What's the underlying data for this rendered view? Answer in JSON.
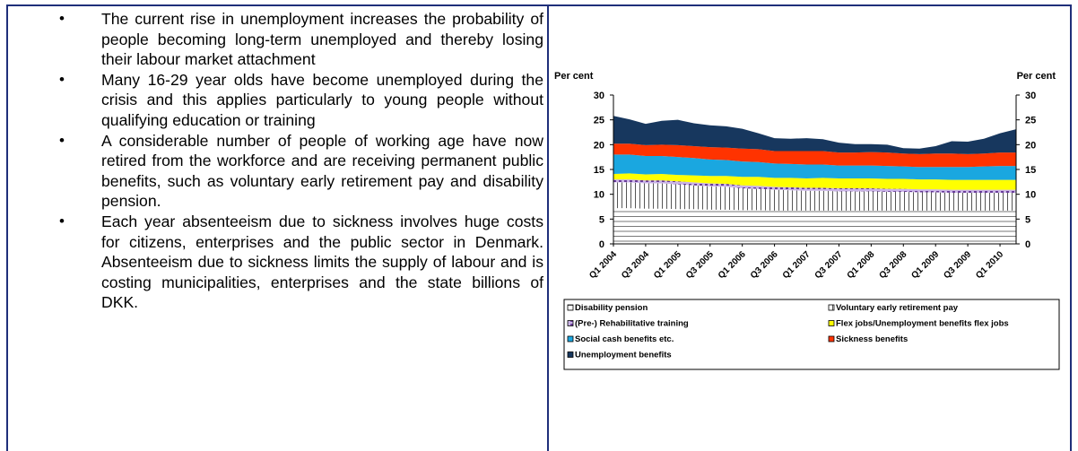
{
  "bullets": [
    "The current rise in unemployment increases the probability of people becoming long-term unemployed and thereby losing their labour market attachment",
    "Many 16-29 year olds have become unemployed during the crisis and this applies particularly to young people without qualifying education or training",
    "A considerable number of people of working age have now retired from the workforce and are receiving permanent public benefits, such as voluntary early retirement pay and disability pension.",
    "Each year absenteeism due to sickness involves huge costs for citizens, enterprises and the public sector in Denmark. Absenteeism due to sickness limits the supply of labour and is costing municipalities, enterprises and the state billions of DKK."
  ],
  "bullet_symbol": "•",
  "chart_data": {
    "type": "area",
    "stacked": true,
    "ylabel_left": "Per cent",
    "ylabel_right": "Per cent",
    "ylim": [
      0,
      30
    ],
    "yticks": [
      0,
      5,
      10,
      15,
      20,
      25,
      30
    ],
    "grid": false,
    "legend_placement": "bottom",
    "tick_labels": [
      "Q1 2004",
      "Q3 2004",
      "Q1 2005",
      "Q3 2005",
      "Q1 2006",
      "Q3 2006",
      "Q1 2007",
      "Q3 2007",
      "Q1 2008",
      "Q3 2008",
      "Q1 2009",
      "Q3 2009",
      "Q1 2010"
    ],
    "x": [
      "Q1 2004",
      "Q2 2004",
      "Q3 2004",
      "Q4 2004",
      "Q1 2005",
      "Q2 2005",
      "Q3 2005",
      "Q4 2005",
      "Q1 2006",
      "Q2 2006",
      "Q3 2006",
      "Q4 2006",
      "Q1 2007",
      "Q2 2007",
      "Q3 2007",
      "Q4 2007",
      "Q1 2008",
      "Q2 2008",
      "Q3 2008",
      "Q4 2008",
      "Q1 2009",
      "Q2 2009",
      "Q3 2009",
      "Q4 2009",
      "Q1 2010",
      "Q2 2010"
    ],
    "series": [
      {
        "name": "Disability pension",
        "color": "#ffffff",
        "pattern": "hlines",
        "values": [
          7.2,
          7.2,
          7.1,
          7.1,
          7.0,
          7.0,
          6.9,
          6.9,
          6.8,
          6.8,
          6.7,
          6.7,
          6.7,
          6.7,
          6.7,
          6.7,
          6.7,
          6.7,
          6.7,
          6.7,
          6.7,
          6.7,
          6.7,
          6.7,
          6.7,
          6.7
        ]
      },
      {
        "name": "Voluntary early retirement pay",
        "color": "#ffffff",
        "pattern": "vlines",
        "values": [
          5.2,
          5.2,
          5.1,
          5.1,
          5.0,
          4.8,
          4.7,
          4.6,
          4.4,
          4.3,
          4.2,
          4.1,
          4.0,
          4.0,
          3.9,
          3.9,
          3.9,
          3.8,
          3.8,
          3.7,
          3.7,
          3.6,
          3.6,
          3.6,
          3.6,
          3.6
        ]
      },
      {
        "name": "(Pre-) Rehabilitative training",
        "color": "#9b6fc4",
        "pattern": "dashes",
        "values": [
          0.6,
          0.6,
          0.6,
          0.6,
          0.6,
          0.6,
          0.6,
          0.6,
          0.6,
          0.6,
          0.6,
          0.6,
          0.6,
          0.6,
          0.6,
          0.6,
          0.6,
          0.6,
          0.6,
          0.6,
          0.6,
          0.6,
          0.6,
          0.6,
          0.6,
          0.6
        ]
      },
      {
        "name": "Flex jobs/Unemployment benefits flex jobs",
        "color": "#ffff00",
        "values": [
          1.1,
          1.2,
          1.2,
          1.3,
          1.3,
          1.4,
          1.5,
          1.6,
          1.7,
          1.8,
          1.8,
          1.9,
          1.9,
          2.0,
          2.0,
          2.0,
          2.0,
          2.0,
          2.0,
          2.0,
          2.0,
          2.0,
          2.0,
          2.0,
          2.0,
          2.0
        ]
      },
      {
        "name": "Social cash benefits etc.",
        "color": "#1aa7e0",
        "values": [
          3.9,
          3.8,
          3.7,
          3.6,
          3.6,
          3.5,
          3.3,
          3.2,
          3.1,
          3.0,
          2.9,
          2.8,
          2.8,
          2.7,
          2.6,
          2.6,
          2.6,
          2.6,
          2.5,
          2.5,
          2.5,
          2.6,
          2.6,
          2.7,
          2.8,
          2.8
        ]
      },
      {
        "name": "Sickness benefits",
        "color": "#ff3300",
        "values": [
          2.2,
          2.2,
          2.2,
          2.3,
          2.4,
          2.4,
          2.5,
          2.5,
          2.6,
          2.6,
          2.5,
          2.6,
          2.7,
          2.7,
          2.6,
          2.6,
          2.7,
          2.7,
          2.6,
          2.6,
          2.7,
          2.7,
          2.6,
          2.6,
          2.7,
          2.7
        ]
      },
      {
        "name": "Unemployment benefits",
        "color": "#17375e",
        "values": [
          5.6,
          4.9,
          4.3,
          4.8,
          5.1,
          4.6,
          4.4,
          4.3,
          4.0,
          3.2,
          2.6,
          2.5,
          2.6,
          2.4,
          2.0,
          1.7,
          1.6,
          1.6,
          1.1,
          1.1,
          1.5,
          2.5,
          2.5,
          3.0,
          3.9,
          4.7
        ]
      }
    ]
  }
}
